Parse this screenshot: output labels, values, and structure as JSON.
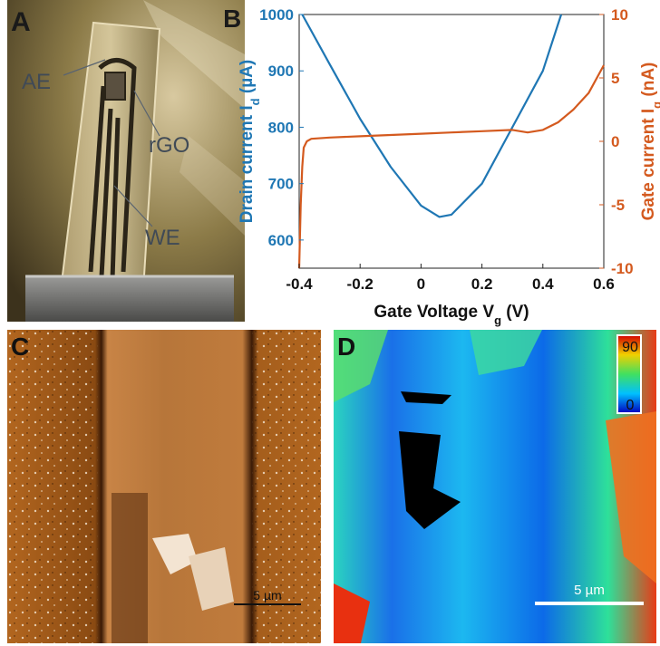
{
  "panels": {
    "a": {
      "letter": "A",
      "labels": {
        "ae": "AE",
        "rgo": "rGO",
        "we": "WE"
      }
    },
    "b": {
      "letter": "B"
    },
    "c": {
      "letter": "C",
      "scalebar": "5 µm"
    },
    "d": {
      "letter": "D",
      "scalebar": "5 µm",
      "colorbar_max": "90",
      "colorbar_min": "0"
    }
  },
  "chart_data": {
    "type": "line",
    "xlabel": "Gate Voltage V",
    "xlabel_sub": "g",
    "xlabel_unit": " (V)",
    "xlim": [
      -0.4,
      0.6
    ],
    "xticks": [
      "-0.4",
      "-0.2",
      "0",
      "0.2",
      "0.4",
      "0.6"
    ],
    "y_left": {
      "label": "Drain current I",
      "label_sub": "d",
      "label_unit": " (µA)",
      "lim": [
        550,
        1000
      ],
      "ticks": [
        "600",
        "700",
        "800",
        "900",
        "1000"
      ],
      "color": "#1f77b4"
    },
    "y_right": {
      "label": "Gate current I",
      "label_sub": "g",
      "label_unit": " (nA)",
      "lim": [
        -10,
        10
      ],
      "ticks": [
        "-10",
        "-5",
        "0",
        "5",
        "10"
      ],
      "color": "#d45a1f"
    },
    "series": [
      {
        "axis": "left",
        "color": "#1f77b4",
        "x": [
          -0.39,
          -0.3,
          -0.2,
          -0.1,
          0.0,
          0.06,
          0.1,
          0.2,
          0.3,
          0.4,
          0.46
        ],
        "y": [
          1000,
          912,
          815,
          730,
          661,
          641,
          645,
          700,
          800,
          900,
          1000
        ]
      },
      {
        "axis": "right",
        "color": "#d45a1f",
        "x": [
          -0.4,
          -0.395,
          -0.39,
          -0.385,
          -0.375,
          -0.36,
          -0.3,
          -0.2,
          -0.1,
          0.0,
          0.1,
          0.2,
          0.3,
          0.35,
          0.4,
          0.45,
          0.5,
          0.55,
          0.6
        ],
        "y": [
          -10,
          -5,
          -2,
          -0.5,
          0.0,
          0.2,
          0.3,
          0.4,
          0.5,
          0.6,
          0.7,
          0.8,
          0.9,
          0.7,
          0.9,
          1.5,
          2.5,
          3.8,
          6.0
        ]
      }
    ]
  }
}
